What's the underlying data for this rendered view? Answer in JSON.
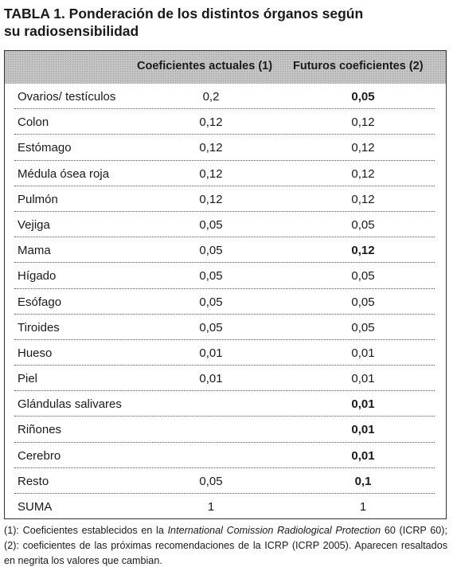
{
  "title": {
    "line1": "TABLA 1. Ponderación de los distintos órganos según",
    "line2": "su radiosensibilidad"
  },
  "table": {
    "headers": [
      "",
      "Coeficientes actuales (1)",
      "Futuros coeficientes (2)"
    ],
    "rows": [
      {
        "organ": "Ovarios/ testículos",
        "actual": "0,2",
        "future": "0,05",
        "changed": true
      },
      {
        "organ": "Colon",
        "actual": "0,12",
        "future": "0,12",
        "changed": false
      },
      {
        "organ": "Estómago",
        "actual": "0,12",
        "future": "0,12",
        "changed": false
      },
      {
        "organ": "Médula ósea roja",
        "actual": "0,12",
        "future": "0,12",
        "changed": false
      },
      {
        "organ": "Pulmón",
        "actual": "0,12",
        "future": "0,12",
        "changed": false
      },
      {
        "organ": "Vejiga",
        "actual": "0,05",
        "future": "0,05",
        "changed": false
      },
      {
        "organ": "Mama",
        "actual": "0,05",
        "future": "0,12",
        "changed": true
      },
      {
        "organ": "Hígado",
        "actual": "0,05",
        "future": "0,05",
        "changed": false
      },
      {
        "organ": "Esófago",
        "actual": "0,05",
        "future": "0,05",
        "changed": false
      },
      {
        "organ": "Tiroides",
        "actual": "0,05",
        "future": "0,05",
        "changed": false
      },
      {
        "organ": "Hueso",
        "actual": "0,01",
        "future": "0,01",
        "changed": false
      },
      {
        "organ": "Piel",
        "actual": "0,01",
        "future": "0,01",
        "changed": false
      },
      {
        "organ": "Glándulas salivares",
        "actual": "",
        "future": "0,01",
        "changed": true
      },
      {
        "organ": "Riñones",
        "actual": "",
        "future": "0,01",
        "changed": true
      },
      {
        "organ": "Cerebro",
        "actual": "",
        "future": "0,01",
        "changed": true
      },
      {
        "organ": "Resto",
        "actual": "0,05",
        "future": "0,1",
        "changed": true
      },
      {
        "organ": "SUMA",
        "actual": "1",
        "future": "1",
        "changed": false
      }
    ]
  },
  "footnote": {
    "part1": "(1): Coeficientes establecidos en la ",
    "italic": "International Comission Radiological Protection",
    "part2": " 60 (ICRP 60); (2): coeficientes de las próximas recomendaciones de la ICRP (ICRP 2005). Aparecen resaltados en negrita los valores que cambian."
  }
}
